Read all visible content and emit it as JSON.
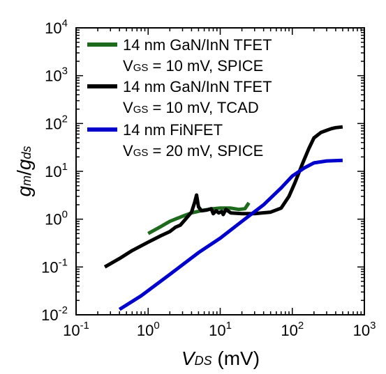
{
  "chart_data": {
    "type": "line",
    "x_scale": "log",
    "y_scale": "log",
    "xlim": [
      0.1,
      1000
    ],
    "ylim": [
      0.01,
      10000
    ],
    "grid": false,
    "legend_placement": "top-left",
    "xlabel": {
      "main": "V",
      "sub": "DS",
      "unit": " (mV)"
    },
    "ylabel": {
      "g1": "g",
      "s1": "m",
      "slash": "/",
      "g2": "g",
      "s2": "ds"
    },
    "x_ticks": [
      {
        "base": "10",
        "exp": "-1",
        "value": 0.1
      },
      {
        "base": "10",
        "exp": "0",
        "value": 1
      },
      {
        "base": "10",
        "exp": "1",
        "value": 10
      },
      {
        "base": "10",
        "exp": "2",
        "value": 100
      },
      {
        "base": "10",
        "exp": "3",
        "value": 1000
      }
    ],
    "y_ticks": [
      {
        "base": "10",
        "exp": "-2",
        "value": 0.01
      },
      {
        "base": "10",
        "exp": "-1",
        "value": 0.1
      },
      {
        "base": "10",
        "exp": "0",
        "value": 1
      },
      {
        "base": "10",
        "exp": "1",
        "value": 10
      },
      {
        "base": "10",
        "exp": "2",
        "value": 100
      },
      {
        "base": "10",
        "exp": "3",
        "value": 1000
      },
      {
        "base": "10",
        "exp": "4",
        "value": 10000
      }
    ],
    "series": [
      {
        "key": "gan_spice",
        "color": "#1e6b1e",
        "legend_line1": "14 nm GaN/InN TFET",
        "legend_line2": {
          "v": "V",
          "sub": "GS",
          "rest": " = 10 mV, SPICE"
        },
        "points": [
          [
            1.0,
            0.5
          ],
          [
            1.5,
            0.7
          ],
          [
            2.0,
            0.9
          ],
          [
            3.0,
            1.15
          ],
          [
            4.0,
            1.35
          ],
          [
            6.0,
            1.55
          ],
          [
            8.0,
            1.65
          ],
          [
            10.0,
            1.7
          ],
          [
            14.0,
            1.7
          ],
          [
            18.0,
            1.6
          ],
          [
            22.0,
            1.65
          ],
          [
            25.0,
            2.2
          ]
        ]
      },
      {
        "key": "gan_tcad",
        "color": "#000000",
        "legend_line1": "14 nm GaN/InN TFET",
        "legend_line2": {
          "v": "V",
          "sub": "GS",
          "rest": " = 10 mV, TCAD"
        },
        "points": [
          [
            0.25,
            0.1
          ],
          [
            0.4,
            0.15
          ],
          [
            0.6,
            0.22
          ],
          [
            1.0,
            0.33
          ],
          [
            1.5,
            0.45
          ],
          [
            2.0,
            0.55
          ],
          [
            2.4,
            0.68
          ],
          [
            2.8,
            0.75
          ],
          [
            3.3,
            1.0
          ],
          [
            4.0,
            1.4
          ],
          [
            4.4,
            2.2
          ],
          [
            4.7,
            3.2
          ],
          [
            5.0,
            1.8
          ],
          [
            5.5,
            1.5
          ],
          [
            6.5,
            1.55
          ],
          [
            7.5,
            1.65
          ],
          [
            8.0,
            1.3
          ],
          [
            8.8,
            1.5
          ],
          [
            9.5,
            1.35
          ],
          [
            10.5,
            1.45
          ],
          [
            11.0,
            1.25
          ],
          [
            12.0,
            1.6
          ],
          [
            14.0,
            1.35
          ],
          [
            20.0,
            1.3
          ],
          [
            30.0,
            1.3
          ],
          [
            50.0,
            1.4
          ],
          [
            70.0,
            1.7
          ],
          [
            90.0,
            3.0
          ],
          [
            110.0,
            6.0
          ],
          [
            140.0,
            15.0
          ],
          [
            170.0,
            30.0
          ],
          [
            200.0,
            50.0
          ],
          [
            250.0,
            65.0
          ],
          [
            300.0,
            72.0
          ],
          [
            350.0,
            78.0
          ],
          [
            400.0,
            82.0
          ],
          [
            500.0,
            85.0
          ]
        ]
      },
      {
        "key": "finfet_spice",
        "color": "#0000cc",
        "legend_line1": "14 nm FiNFET",
        "legend_line2": {
          "v": "V",
          "sub": "GS",
          "rest": " = 20 mV, SPICE"
        },
        "points": [
          [
            0.4,
            0.013
          ],
          [
            0.8,
            0.025
          ],
          [
            2.0,
            0.07
          ],
          [
            5.0,
            0.2
          ],
          [
            10.0,
            0.4
          ],
          [
            20.0,
            0.9
          ],
          [
            40.0,
            2.0
          ],
          [
            70.0,
            4.5
          ],
          [
            100.0,
            8.0
          ],
          [
            150.0,
            12.0
          ],
          [
            200.0,
            15.0
          ],
          [
            300.0,
            16.5
          ],
          [
            500.0,
            17.0
          ]
        ]
      }
    ]
  }
}
